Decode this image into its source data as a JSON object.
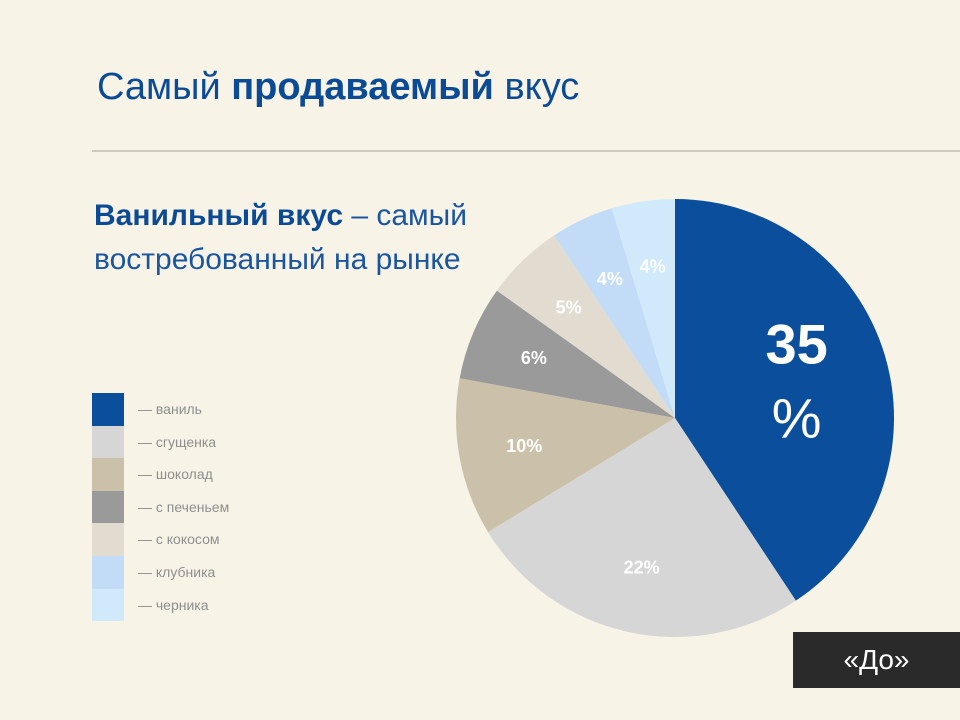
{
  "slide": {
    "title_pre": "Самый ",
    "title_bold": "продаваемый",
    "title_post": " вкус",
    "subtitle_bold": "Ванильный вкус",
    "subtitle_rest": " – самый востребованный на рынке",
    "badge": "«До»"
  },
  "chart_data": {
    "type": "pie",
    "title": "",
    "categories": [
      "ваниль",
      "сгущенка",
      "шоколад",
      "с печеньем",
      "с кокосом",
      "клубника",
      "черника"
    ],
    "values": [
      35,
      22,
      10,
      6,
      5,
      4,
      4
    ],
    "value_labels": [
      "35 %",
      "22%",
      "10%",
      "6%",
      "5%",
      "4%",
      "4%"
    ],
    "legend_prefix": "— ",
    "legend_position": "left",
    "colors": [
      "#0b4e9c",
      "#d6d6d6",
      "#cbc1ab",
      "#9a9a9a",
      "#e2dcd0",
      "#c2dcf8",
      "#d0eafb"
    ],
    "label_colors": [
      "#ffffff",
      "#ffffff",
      "#ffffff",
      "#ffffff",
      "#ffffff",
      "#ffffff",
      "#ffffff"
    ]
  }
}
